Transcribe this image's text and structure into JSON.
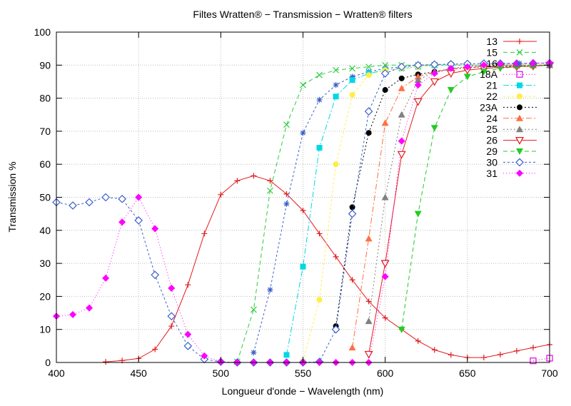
{
  "chart_data": {
    "type": "line",
    "title": "Filtes Wratten® − Transmission − Wratten® filters",
    "xlabel": "Longueur d'onde − Wavelength (nm)",
    "ylabel": "Transmission %",
    "xlim": [
      400,
      700
    ],
    "ylim": [
      0,
      100
    ],
    "xticks": [
      400,
      450,
      500,
      550,
      600,
      650,
      700
    ],
    "yticks": [
      0,
      10,
      20,
      30,
      40,
      50,
      60,
      70,
      80,
      90,
      100
    ],
    "grid": true,
    "legend_position": "top-right",
    "series": [
      {
        "name": "13",
        "color": "#e41a1c",
        "dash": "",
        "marker": "plus",
        "x": [
          430,
          440,
          450,
          460,
          470,
          480,
          490,
          500,
          510,
          520,
          530,
          540,
          550,
          560,
          570,
          580,
          590,
          600,
          610,
          620,
          630,
          640,
          650,
          660,
          670,
          680,
          690,
          700
        ],
        "y": [
          0.2,
          0.6,
          1.2,
          4,
          11,
          23.5,
          39,
          50.8,
          55,
          56.5,
          55,
          51,
          46,
          39,
          32,
          25,
          18.5,
          13.5,
          10,
          6.5,
          3.8,
          2.3,
          1.5,
          1.5,
          2.4,
          3.5,
          4.5,
          5.4
        ]
      },
      {
        "name": "15",
        "color": "#2ecc40",
        "dash": "6,4",
        "marker": "x",
        "x": [
          510,
          520,
          530,
          540,
          550,
          560,
          570,
          580,
          590,
          600,
          610,
          620,
          630,
          640,
          650,
          660,
          670,
          680,
          690,
          700
        ],
        "y": [
          0.2,
          16,
          52,
          72,
          84,
          87,
          88.5,
          89,
          89.5,
          90,
          90,
          90,
          90,
          90,
          90,
          90,
          90,
          90,
          90,
          90
        ]
      },
      {
        "name": "16",
        "color": "#3a5fcd",
        "dash": "3,3",
        "marker": "star",
        "x": [
          520,
          530,
          540,
          550,
          560,
          570,
          580,
          590,
          600,
          610,
          620,
          630,
          640,
          650,
          660,
          670,
          680,
          690,
          700
        ],
        "y": [
          3,
          22,
          48,
          69.5,
          79.5,
          84,
          86.5,
          88,
          89,
          89.5,
          90,
          90,
          90,
          90,
          90,
          90,
          90,
          90,
          90
        ]
      },
      {
        "name": "18A",
        "color": "#e600e6",
        "dash": "1,3",
        "marker": "opensquare",
        "x": [
          690,
          700
        ],
        "y": [
          0.5,
          1.3
        ]
      },
      {
        "name": "21",
        "color": "#00d8e6",
        "dash": "8,3,2,3",
        "marker": "square",
        "x": [
          540,
          550,
          560,
          570,
          580,
          590,
          600,
          610,
          620,
          630,
          640,
          650,
          660,
          670,
          680,
          690,
          700
        ],
        "y": [
          2.3,
          29,
          65,
          80.5,
          85.5,
          87.5,
          88.5,
          89,
          89.5,
          90,
          90,
          90,
          90,
          90,
          90,
          90,
          90
        ]
      },
      {
        "name": "22",
        "color": "#ffee44",
        "dash": "3,3",
        "marker": "circle",
        "x": [
          550,
          560,
          570,
          580,
          590,
          600,
          610,
          620,
          630,
          640,
          650,
          660,
          670,
          680,
          690,
          700
        ],
        "y": [
          0.4,
          19,
          60,
          81,
          87,
          88.5,
          89,
          89.5,
          90,
          90,
          90,
          90,
          90,
          90,
          90,
          90
        ]
      },
      {
        "name": "23A",
        "color": "#000000",
        "dash": "2,3",
        "marker": "circle",
        "x": [
          570,
          580,
          590,
          600,
          610,
          620,
          630,
          640,
          650,
          660,
          670,
          680,
          690,
          700
        ],
        "y": [
          11,
          47,
          69.5,
          82.5,
          86,
          87.2,
          88,
          88.8,
          89.2,
          89.5,
          89.6,
          89.7,
          89.8,
          90
        ]
      },
      {
        "name": "24",
        "color": "#ff7043",
        "dash": "8,3,2,3",
        "marker": "triangle",
        "x": [
          580,
          590,
          600,
          610,
          620,
          630,
          640,
          650,
          660,
          670,
          680,
          690,
          700
        ],
        "y": [
          4.5,
          37.5,
          72.5,
          83,
          86.5,
          88,
          88.8,
          89.3,
          89.6,
          89.8,
          89.9,
          90,
          90
        ]
      },
      {
        "name": "25",
        "color": "#808080",
        "dash": "2,3",
        "marker": "triangle",
        "x": [
          590,
          600,
          610,
          620,
          630,
          640,
          650,
          660,
          670,
          680,
          690,
          700
        ],
        "y": [
          12.5,
          50,
          75,
          85.5,
          88,
          89,
          89.5,
          89.8,
          90,
          90,
          90,
          90
        ]
      },
      {
        "name": "26",
        "color": "#e41a1c",
        "dash": "",
        "marker": "invtriangle",
        "x": [
          590,
          600,
          610,
          620,
          630,
          640,
          650,
          660,
          670,
          680,
          690,
          700
        ],
        "y": [
          2.5,
          30,
          63,
          79,
          85,
          87.5,
          88.5,
          89,
          89.3,
          89.5,
          89.7,
          90
        ]
      },
      {
        "name": "29",
        "color": "#22cc22",
        "dash": "6,4",
        "marker": "dtriangle",
        "x": [
          610,
          620,
          630,
          640,
          650,
          660,
          670,
          680,
          690,
          700
        ],
        "y": [
          10,
          45,
          71,
          82.5,
          86.5,
          88,
          89,
          89.5,
          89.8,
          90
        ]
      },
      {
        "name": "30",
        "color": "#3a5fcd",
        "dash": "3,3",
        "marker": "diamond",
        "x": [
          400,
          410,
          420,
          430,
          440,
          450,
          460,
          470,
          480,
          490,
          500,
          510,
          520,
          530,
          540,
          550,
          560,
          570,
          580,
          590,
          600,
          610,
          620,
          630,
          640,
          650,
          660,
          670,
          680,
          690,
          700
        ],
        "y": [
          48.5,
          47.5,
          48.5,
          50,
          49.5,
          43,
          26.5,
          14,
          5,
          1,
          0.2,
          0,
          0,
          0,
          0,
          0,
          0.2,
          10,
          45,
          76,
          87.5,
          89.5,
          90,
          90.2,
          90.3,
          90.4,
          90.5,
          90.5,
          90.5,
          90.6,
          90.6
        ]
      },
      {
        "name": "31",
        "color": "#ff00ff",
        "dash": "1,3",
        "marker": "filleddiamond",
        "x": [
          400,
          410,
          420,
          430,
          440,
          450,
          460,
          470,
          480,
          490,
          500,
          510,
          520,
          530,
          540,
          550,
          560,
          570,
          580,
          590,
          600,
          610,
          620,
          630,
          640,
          650,
          660,
          670,
          680,
          690,
          700
        ],
        "y": [
          14,
          14.5,
          16.5,
          25.5,
          42.5,
          50,
          40.5,
          22.5,
          8.5,
          2,
          0.2,
          0,
          0,
          0,
          0,
          0,
          0,
          0,
          0,
          0,
          26,
          67,
          84,
          87.5,
          89,
          89.5,
          90,
          90.3,
          90.5,
          90.6,
          90.7
        ]
      }
    ]
  }
}
